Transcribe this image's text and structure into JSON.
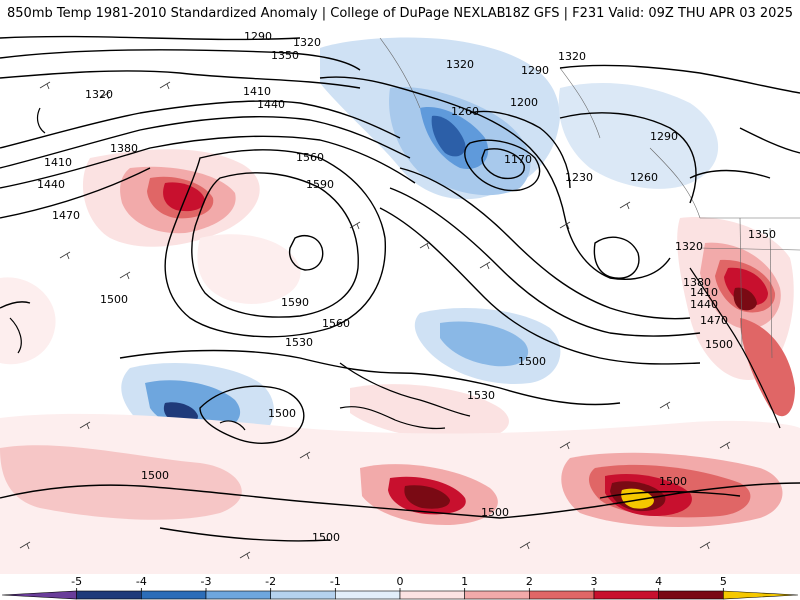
{
  "header": {
    "left": "850mb Temp 1981-2010 Standardized Anomaly | College of DuPage NEXLAB",
    "right": "18Z GFS | F231 Valid: 09Z THU APR 03 2025"
  },
  "legend": {
    "ticks": [
      "-5",
      "-4",
      "-3",
      "-2",
      "-1",
      "0",
      "1",
      "2",
      "3",
      "4",
      "5"
    ],
    "bins": [
      {
        "from": -6,
        "to": -5,
        "color": "#6a3d9a"
      },
      {
        "from": -5,
        "to": -4,
        "color": "#1f3a7a"
      },
      {
        "from": -4,
        "to": -3,
        "color": "#2c6db8"
      },
      {
        "from": -3,
        "to": -2,
        "color": "#6ea6de"
      },
      {
        "from": -2,
        "to": -1,
        "color": "#b5d2ee"
      },
      {
        "from": -1,
        "to": 0,
        "color": "#e2eef9"
      },
      {
        "from": 0,
        "to": 1,
        "color": "#fbe2e2"
      },
      {
        "from": 1,
        "to": 2,
        "color": "#f2aaaa"
      },
      {
        "from": 2,
        "to": 3,
        "color": "#e06666"
      },
      {
        "from": 3,
        "to": 4,
        "color": "#c8102e"
      },
      {
        "from": 4,
        "to": 5,
        "color": "#7a0a14"
      },
      {
        "from": 5,
        "to": 6,
        "color": "#f5c800"
      }
    ]
  },
  "contours": {
    "labels": [
      "1290",
      "1320",
      "1350",
      "1320",
      "1410",
      "1440",
      "1380",
      "1410",
      "1440",
      "1470",
      "1560",
      "1590",
      "1590",
      "1560",
      "1530",
      "1500",
      "1500",
      "1500",
      "1530",
      "1500",
      "1500",
      "1500",
      "1500",
      "1320",
      "1290",
      "1260",
      "1200",
      "1170",
      "1230",
      "1260",
      "1290",
      "1320",
      "1350",
      "1380",
      "1410",
      "1440",
      "1470",
      "1500",
      "1320"
    ]
  }
}
